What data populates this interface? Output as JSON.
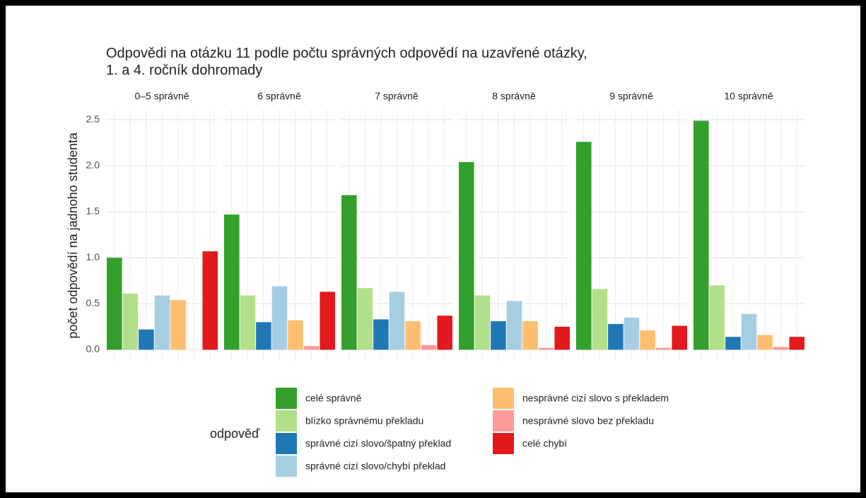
{
  "chart_data": {
    "type": "bar",
    "title": "Odpovědi na otázku 11 podle počtu správných odpovědí na uzavřené otázky,",
    "subtitle": "1. a 4. ročník dohromady",
    "y_label": "počet odpovědí na jadnoho studenta",
    "legend_title": "odpověď",
    "categories": [
      "0–5 správně",
      "6 správně",
      "7 správně",
      "8 správně",
      "9 správně",
      "10 správně"
    ],
    "series": [
      {
        "name": "celé správně",
        "color": "#33a02c",
        "values": [
          1.0,
          1.47,
          1.68,
          2.04,
          2.26,
          2.49
        ]
      },
      {
        "name": "blízko správnému překladu",
        "color": "#b2df8a",
        "values": [
          0.61,
          0.59,
          0.67,
          0.59,
          0.66,
          0.7
        ]
      },
      {
        "name": "správné cizí slovo/špatný překlad",
        "color": "#1f78b4",
        "values": [
          0.22,
          0.3,
          0.33,
          0.31,
          0.28,
          0.14
        ]
      },
      {
        "name": "správné cizí slovo/chybí překlad",
        "color": "#a6cee3",
        "values": [
          0.59,
          0.69,
          0.63,
          0.53,
          0.35,
          0.39
        ]
      },
      {
        "name": "nesprávné cizí slovo s překladem",
        "color": "#fdbf6f",
        "values": [
          0.54,
          0.32,
          0.31,
          0.31,
          0.21,
          0.16
        ]
      },
      {
        "name": "nesprávné slovo bez překladu",
        "color": "#fb9a99",
        "values": [
          null,
          0.04,
          0.05,
          0.02,
          0.02,
          0.03
        ]
      },
      {
        "name": "celé chybí",
        "color": "#e31a1c",
        "values": [
          1.07,
          0.63,
          0.37,
          0.25,
          0.26,
          0.14
        ]
      }
    ],
    "ylim": [
      -0.12,
      2.61
    ],
    "yticks": [
      {
        "value": 0,
        "label": "0.0"
      },
      {
        "value": 0.5,
        "label": "0.5"
      },
      {
        "value": 1,
        "label": "1.0"
      },
      {
        "value": 1.5,
        "label": "1.5"
      },
      {
        "value": 2,
        "label": "2.0"
      },
      {
        "value": 2.5,
        "label": "2.5"
      }
    ],
    "grid": true
  }
}
